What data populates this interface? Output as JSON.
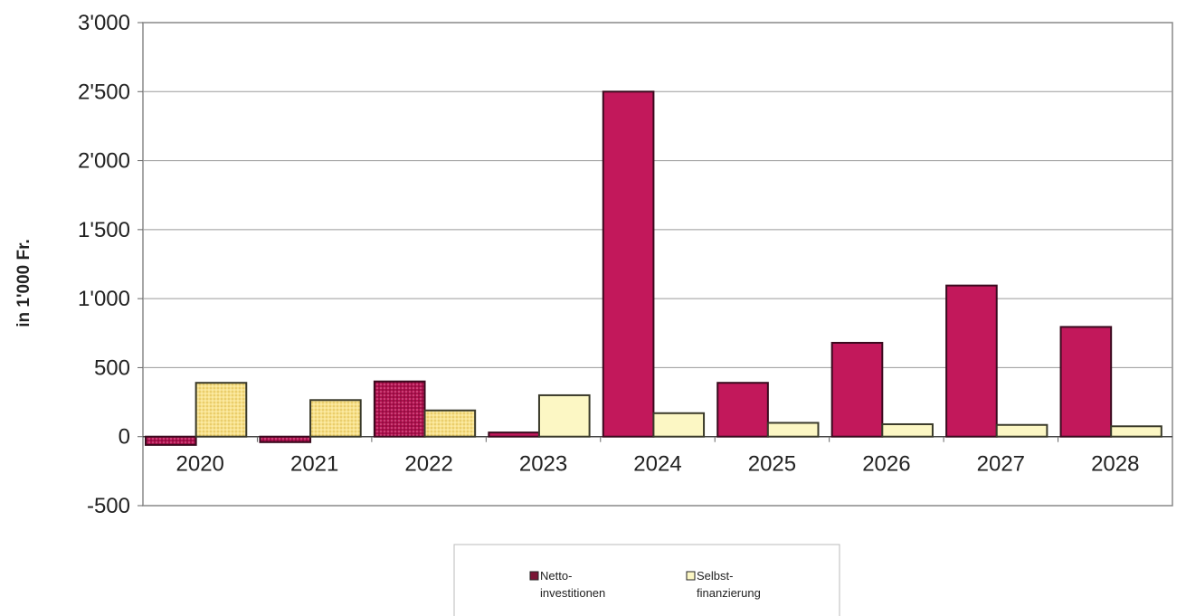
{
  "chart_data": {
    "type": "bar",
    "title": "",
    "xlabel": "",
    "ylabel": "in 1'000 Fr.",
    "categories": [
      "2020",
      "2021",
      "2022",
      "2023",
      "2024",
      "2025",
      "2026",
      "2027",
      "2028"
    ],
    "series": [
      {
        "name": "Netto-investitionen",
        "legend_lines": [
          "Netto-",
          "investitionen"
        ],
        "values": [
          -60,
          -40,
          400,
          30,
          2500,
          390,
          680,
          1095,
          795
        ],
        "color_actual": "#b0114f",
        "color_planned": "#c2185b",
        "stroke": "#3a0a1e"
      },
      {
        "name": "Selbst-finanzierung",
        "legend_lines": [
          "Selbst-",
          "finanzierung"
        ],
        "values": [
          390,
          265,
          190,
          300,
          170,
          100,
          90,
          85,
          75
        ],
        "color_actual": "#f7e08a",
        "color_planned": "#fcf7c4",
        "stroke": "#3a3a2a"
      }
    ],
    "actual_years": [
      "2020",
      "2021",
      "2022"
    ],
    "ylim": [
      -500,
      3000
    ],
    "yticks": [
      -500,
      0,
      500,
      1000,
      1500,
      2000,
      2500,
      3000
    ],
    "ytick_labels": [
      "-500",
      "0",
      "500",
      "1'000",
      "1'500",
      "2'000",
      "2'500",
      "3'000"
    ],
    "grid": true,
    "legend_position": "bottom-center"
  }
}
